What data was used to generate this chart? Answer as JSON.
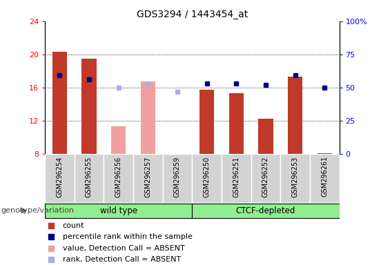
{
  "title": "GDS3294 / 1443454_at",
  "samples": [
    "GSM296254",
    "GSM296255",
    "GSM296256",
    "GSM296257",
    "GSM296259",
    "GSM296250",
    "GSM296251",
    "GSM296252",
    "GSM296253",
    "GSM296261"
  ],
  "bar_values": [
    20.3,
    19.5,
    null,
    null,
    null,
    15.7,
    15.3,
    12.2,
    17.3,
    8.1
  ],
  "bar_color_present": "#c0392b",
  "bar_color_absent": "#f0a0a0",
  "absent_value_bars": [
    null,
    null,
    11.3,
    16.7,
    null,
    null,
    null,
    null,
    null,
    null
  ],
  "absent_rank_dots": [
    null,
    null,
    16.0,
    16.5,
    15.5,
    null,
    null,
    null,
    null,
    null
  ],
  "rank_dots": [
    17.5,
    17.0,
    null,
    null,
    null,
    16.5,
    16.5,
    16.3,
    17.5,
    16.0
  ],
  "rank_dot_color_present": "#00008b",
  "rank_dot_color_absent": "#aab0e0",
  "ylim_left": [
    8,
    24
  ],
  "ylim_right": [
    0,
    100
  ],
  "yticks_left": [
    8,
    12,
    16,
    20,
    24
  ],
  "ytick_labels_left": [
    "8",
    "12",
    "16",
    "20",
    "24"
  ],
  "yticks_right_pct": [
    0,
    25,
    50,
    75,
    100
  ],
  "ytick_labels_right": [
    "0",
    "25",
    "50",
    "75",
    "100%"
  ],
  "bar_width": 0.5,
  "legend_items": [
    {
      "label": "count",
      "color": "#c0392b"
    },
    {
      "label": "percentile rank within the sample",
      "color": "#00008b"
    },
    {
      "label": "value, Detection Call = ABSENT",
      "color": "#f0a0a0"
    },
    {
      "label": "rank, Detection Call = ABSENT",
      "color": "#aab0e0"
    }
  ],
  "genotype_label": "genotype/variation",
  "title_fontsize": 10,
  "tick_fontsize": 8,
  "legend_fontsize": 8,
  "wt_group": [
    0,
    1,
    2,
    3,
    4
  ],
  "ctcf_group": [
    5,
    6,
    7,
    8,
    9
  ],
  "wt_label": "wild type",
  "ctcf_label": "CTCF-depleted",
  "group_color": "#90ee90"
}
